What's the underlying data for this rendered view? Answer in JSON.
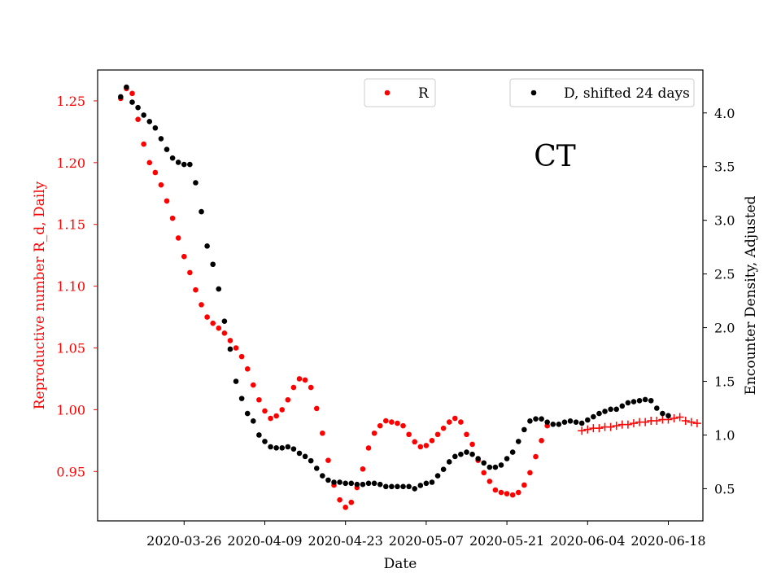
{
  "chart_data": {
    "type": "scatter",
    "annotation": "CT",
    "xlabel": "Date",
    "ylabel_left": "Reproductive number R_d, Daily",
    "ylabel_right": "Encounter Density, Adjusted",
    "x_tick_labels": [
      "2020-03-26",
      "2020-04-09",
      "2020-04-23",
      "2020-05-07",
      "2020-05-21",
      "2020-06-04",
      "2020-06-18"
    ],
    "xlim": [
      "2020-03-11",
      "2020-06-24"
    ],
    "ylim_left": [
      0.91,
      1.275
    ],
    "ylim_right": [
      0.2,
      4.4
    ],
    "y_ticks_left": [
      0.95,
      1.0,
      1.05,
      1.1,
      1.15,
      1.2,
      1.25
    ],
    "y_ticks_right": [
      0.5,
      1.0,
      1.5,
      2.0,
      2.5,
      3.0,
      3.5,
      4.0
    ],
    "left_axis_color": "#ff0000",
    "right_axis_color": "#000000",
    "legend_left_placement": "top-center",
    "legend_right_placement": "top-right",
    "series": [
      {
        "name": "R",
        "axis": "left",
        "marker": "dot",
        "color": "#ff0000",
        "start_date": "2020-03-15",
        "values": [
          1.252,
          1.26,
          1.256,
          1.235,
          1.215,
          1.2,
          1.192,
          1.182,
          1.169,
          1.155,
          1.139,
          1.124,
          1.111,
          1.097,
          1.085,
          1.075,
          1.07,
          1.066,
          1.062,
          1.056,
          1.05,
          1.043,
          1.033,
          1.02,
          1.008,
          0.999,
          0.993,
          0.995,
          1.0,
          1.008,
          1.018,
          1.025,
          1.024,
          1.018,
          1.001,
          0.981,
          0.959,
          0.939,
          0.927,
          0.921,
          0.925,
          0.937,
          0.952,
          0.969,
          0.981,
          0.987,
          0.991,
          0.99,
          0.989,
          0.987,
          0.98,
          0.974,
          0.97,
          0.971,
          0.975,
          0.98,
          0.985,
          0.99,
          0.993,
          0.99,
          0.98,
          0.972,
          0.959,
          0.949,
          0.942,
          0.935,
          0.933,
          0.932,
          0.931,
          0.933,
          0.939,
          0.949,
          0.962,
          0.975,
          0.987
        ]
      },
      {
        "name": "",
        "axis": "left",
        "marker": "plus",
        "color": "#ff0000",
        "start_date": "2020-06-03",
        "values": [
          0.983,
          0.984,
          0.985,
          0.985,
          0.986,
          0.986,
          0.987,
          0.988,
          0.988,
          0.989,
          0.99,
          0.99,
          0.991,
          0.991,
          0.992,
          0.992,
          0.993,
          0.994,
          0.991,
          0.99,
          0.989
        ]
      },
      {
        "name": "D, shifted 24 days",
        "axis": "right",
        "marker": "dot",
        "color": "#000000",
        "start_date": "2020-03-15",
        "values": [
          4.15,
          4.24,
          4.1,
          4.05,
          3.98,
          3.92,
          3.86,
          3.76,
          3.66,
          3.58,
          3.54,
          3.52,
          3.52,
          3.35,
          3.08,
          2.76,
          2.59,
          2.36,
          2.06,
          1.8,
          1.5,
          1.34,
          1.2,
          1.13,
          1.0,
          0.94,
          0.89,
          0.88,
          0.88,
          0.89,
          0.87,
          0.83,
          0.8,
          0.76,
          0.69,
          0.62,
          0.58,
          0.56,
          0.56,
          0.55,
          0.55,
          0.54,
          0.54,
          0.55,
          0.55,
          0.54,
          0.52,
          0.52,
          0.52,
          0.52,
          0.52,
          0.5,
          0.53,
          0.55,
          0.56,
          0.62,
          0.68,
          0.75,
          0.8,
          0.82,
          0.84,
          0.82,
          0.78,
          0.74,
          0.7,
          0.7,
          0.72,
          0.78,
          0.84,
          0.94,
          1.05,
          1.13,
          1.15,
          1.15,
          1.12,
          1.1,
          1.1,
          1.12,
          1.13,
          1.12,
          1.11,
          1.14,
          1.17,
          1.2,
          1.22,
          1.24,
          1.24,
          1.27,
          1.3,
          1.31,
          1.32,
          1.33,
          1.32,
          1.25,
          1.2,
          1.18
        ]
      }
    ]
  }
}
